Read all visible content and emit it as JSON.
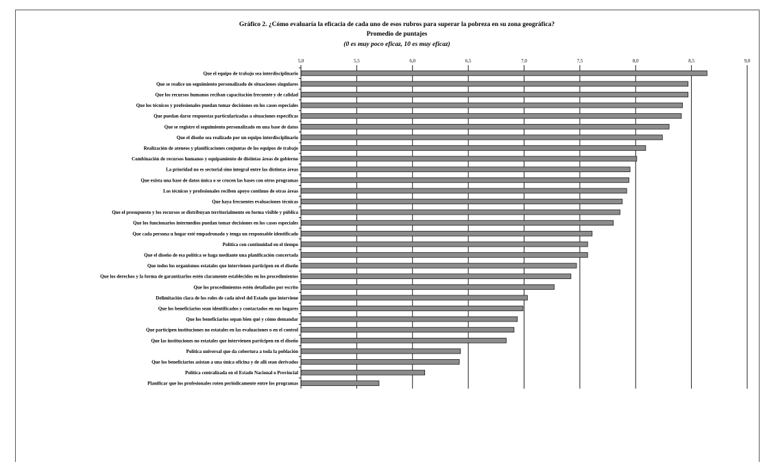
{
  "chart_data": {
    "type": "bar",
    "orientation": "horizontal",
    "title": "Gráfico 2. ¿Cómo evaluaría la eficacia de cada uno de esos rubros para superar la pobreza en su zona geográfica?",
    "subtitle": "Promedio de puntajes",
    "note": "(0 es muy poco eficaz, 10 es muy eficaz)",
    "xlim": [
      5.0,
      9.0
    ],
    "ticks": [
      "5,0",
      "5,5",
      "6,0",
      "6,5",
      "7,0",
      "7,5",
      "8,0",
      "8,5",
      "9,0"
    ],
    "tick_values": [
      5.0,
      5.5,
      6.0,
      6.5,
      7.0,
      7.5,
      8.0,
      8.5,
      9.0
    ],
    "grid": true,
    "categories": [
      "Que el equipo de trabajo sea interdisciplinario",
      "Que se realice un seguimiento personalizado de situaciones singulares",
      "Que los recursos humanos reciban capacitación frecuente y de calidad",
      "Que los técnicos y profesionales puedan tomar decisiones en los casos especiales",
      "Que puedan darse respuestas particularizadas a situaciones específicas",
      "Que se registre el seguimiento personalizado en una base de datos",
      "Que el diseño sea realizado por un equipo interdisciplinario",
      "Realización de ateneos y planificaciones conjuntas de los equipos de trabajo",
      "Combinación de recursos humanos y equipamiento de distintas áreas de gobierno",
      "La prioridad no es sectorial sino integral entre las distintas áreas",
      "Que exista una base de datos única o se crucen las bases con otros programas",
      "Los técnicos y profesionales reciben apoyo continuo de otras áreas",
      "Que haya frecuentes evaluaciones técnicas",
      "Que el presupuesto y los recursos se distribuyan territorialmente en forma visible y pública",
      "Que los funcionarios intermedios puedan tomar decisiones en los casos especiales",
      "Que cada persona u hogar esté empadronado y tenga un responsable identificado",
      "Política con continuidad en el tiempo",
      "Que el diseño de esa política se haga mediante una planificación concertada",
      "Que todos los organismos estatales que intervienen participen en el diseño",
      "Que los derechos y la forma de garantizarlos estén claramente establecidos en los procedimientos",
      "Que los procedimientos estén detallados por escrito",
      "Delimitación clara de los roles de cada nivel del Estado que interviene",
      "Que los beneficiarios sean identificados y contactados en sus hogares",
      "Que los beneficiarios sepan bien qué y cómo demandar",
      "Que participen instituciones no estatales en las evaluaciones o en el control",
      "Que las instituciones no estatales que intervienen participen en el diseño",
      "Política universal que da cobertura a toda la población",
      "Que los beneficiarios asistan a una única oficina y de allí sean derivados",
      "Política centralizada en el Estado Nacional o Provincial",
      "Planificar que los profesionales roten periódicamente entre los programas"
    ],
    "values": [
      8.64,
      8.47,
      8.47,
      8.42,
      8.41,
      8.3,
      8.24,
      8.09,
      8.01,
      7.95,
      7.94,
      7.92,
      7.88,
      7.86,
      7.8,
      7.61,
      7.57,
      7.57,
      7.47,
      7.42,
      7.27,
      7.03,
      6.99,
      6.94,
      6.91,
      6.84,
      6.43,
      6.42,
      6.11,
      5.7
    ]
  }
}
